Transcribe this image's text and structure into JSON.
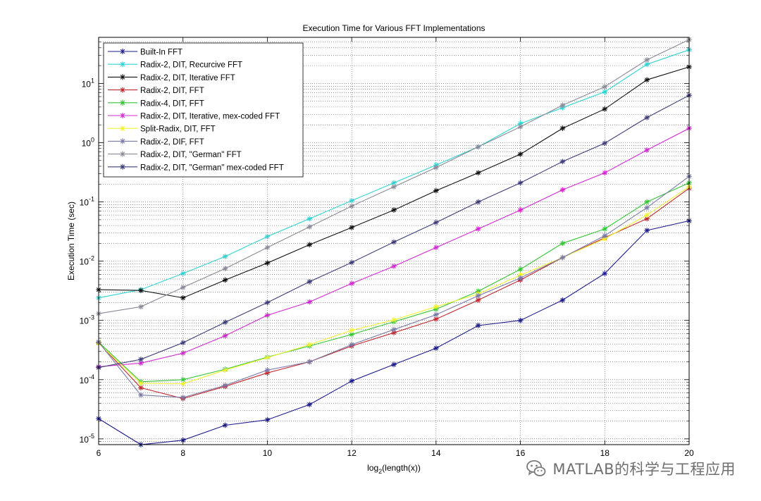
{
  "watermark": {
    "text": "MATLAB的科学与工程应用",
    "icon": "wechat-logo"
  },
  "chart_data": {
    "type": "line",
    "title": "Execution Time for Various FFT Implementations",
    "xlabel_base": "log",
    "xlabel_sub": "2",
    "xlabel_rest": "(length(x))",
    "ylabel": "Execution Time (sec)",
    "xlim": [
      6,
      20
    ],
    "ylim": [
      8e-06,
      60
    ],
    "yscale": "log",
    "grid": true,
    "legend_position": "top-left",
    "xticks": [
      6,
      8,
      10,
      12,
      14,
      16,
      18,
      20
    ],
    "xtick_labels": [
      "6",
      "8",
      "10",
      "12",
      "14",
      "16",
      "18",
      "20"
    ],
    "yticks": [
      1e-05,
      0.0001,
      0.001,
      0.01,
      0.1,
      1,
      10
    ],
    "ytick_labels": [
      {
        "base": "10",
        "exp": "-5"
      },
      {
        "base": "10",
        "exp": "-4"
      },
      {
        "base": "10",
        "exp": "-3"
      },
      {
        "base": "10",
        "exp": "-2"
      },
      {
        "base": "10",
        "exp": "-1"
      },
      {
        "base": "10",
        "exp": "0"
      },
      {
        "base": "10",
        "exp": "1"
      }
    ],
    "x": [
      6,
      7,
      8,
      9,
      10,
      11,
      12,
      13,
      14,
      15,
      16,
      17,
      18,
      19,
      20
    ],
    "series": [
      {
        "name": "Built-In FFT",
        "color": "#1c1c8c",
        "values": [
          2.2e-05,
          8e-06,
          9.5e-06,
          1.7e-05,
          2.1e-05,
          3.8e-05,
          9.5e-05,
          0.00018,
          0.00034,
          0.00082,
          0.001,
          0.0022,
          0.0062,
          0.033,
          0.048
        ]
      },
      {
        "name": "Radix-2, DIT, Recurcive FFT",
        "color": "#32d2d2",
        "values": [
          0.0024,
          0.0033,
          0.0062,
          0.012,
          0.026,
          0.052,
          0.105,
          0.21,
          0.42,
          0.85,
          2.1,
          3.9,
          7.2,
          21,
          37
        ]
      },
      {
        "name": "Radix-2, DIT, Iterative FFT",
        "color": "#111111",
        "values": [
          0.0033,
          0.0032,
          0.0024,
          0.0048,
          0.0093,
          0.019,
          0.037,
          0.073,
          0.155,
          0.31,
          0.64,
          1.75,
          3.7,
          11.5,
          19
        ]
      },
      {
        "name": "Radix-2, DIT, FFT",
        "color": "#c0282d",
        "values": [
          0.00042,
          7.3e-05,
          4.8e-05,
          7.7e-05,
          0.00013,
          0.0002,
          0.00037,
          0.00062,
          0.00105,
          0.0022,
          0.0048,
          0.0115,
          0.025,
          0.052,
          0.17
        ]
      },
      {
        "name": "Radix-4, DIT, FFT",
        "color": "#35c535",
        "values": [
          0.00043,
          9.2e-05,
          0.0001,
          0.00015,
          0.00024,
          0.00037,
          0.00058,
          0.00095,
          0.00155,
          0.0031,
          0.0073,
          0.02,
          0.035,
          0.1,
          0.21
        ]
      },
      {
        "name": "Radix-2, DIT, Iterative, mex-coded FFT",
        "color": "#d228d2",
        "values": [
          0.000165,
          0.00019,
          0.00028,
          0.00055,
          0.00122,
          0.00205,
          0.0042,
          0.0082,
          0.017,
          0.035,
          0.073,
          0.16,
          0.31,
          0.75,
          1.75
        ]
      },
      {
        "name": "Split-Radix, DIT, FFT",
        "color": "#f2f232",
        "values": [
          0.00041,
          8.7e-05,
          8.5e-05,
          0.000145,
          0.000235,
          0.00039,
          0.00068,
          0.00102,
          0.0017,
          0.0028,
          0.0058,
          0.0115,
          0.024,
          0.06,
          0.18
        ]
      },
      {
        "name": "Radix-2, DIF, FFT",
        "color": "#7a7aa8",
        "values": [
          0.00043,
          5.5e-05,
          5e-05,
          8e-05,
          0.000145,
          0.0002,
          0.00039,
          0.0007,
          0.00125,
          0.0026,
          0.0052,
          0.0115,
          0.027,
          0.08,
          0.27
        ]
      },
      {
        "name": "Radix-2, DIT, \"German\" FFT",
        "color": "#8a8a98",
        "values": [
          0.0013,
          0.0017,
          0.0036,
          0.0075,
          0.017,
          0.038,
          0.085,
          0.18,
          0.38,
          0.85,
          1.85,
          4.3,
          8.8,
          25,
          55
        ]
      },
      {
        "name": "Radix-2, DIT, \"German\" mex-coded FFT",
        "color": "#3c3c78",
        "values": [
          0.00016,
          0.00022,
          0.00042,
          0.00093,
          0.002,
          0.0045,
          0.0095,
          0.021,
          0.045,
          0.1,
          0.21,
          0.48,
          0.98,
          2.65,
          6.3
        ]
      }
    ]
  }
}
